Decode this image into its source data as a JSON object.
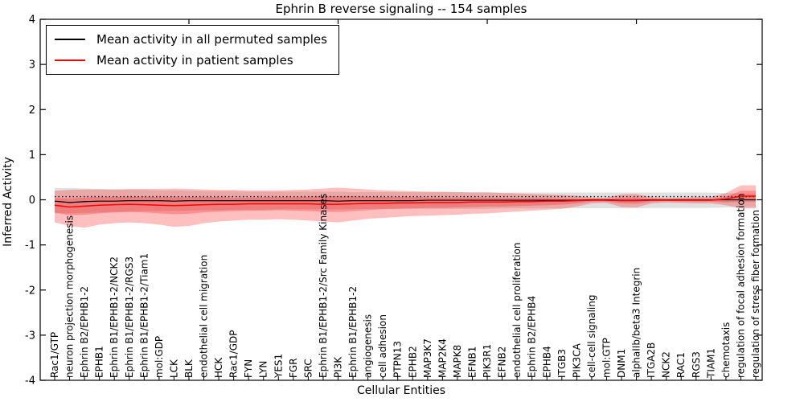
{
  "figure": {
    "title": "Ephrin B reverse signaling -- 154 samples",
    "xlabel": "Cellular Entities",
    "ylabel": "Inferred Activity",
    "legend": [
      {
        "label": "Mean activity in all permuted samples",
        "color": "#000000"
      },
      {
        "label": "Mean activity in patient samples",
        "color": "#ff0000"
      }
    ]
  },
  "chart_data": {
    "type": "line",
    "title": "Ephrin B reverse signaling -- 154 samples",
    "xlabel": "Cellular Entities",
    "ylabel": "Inferred Activity",
    "ylim": [
      -4,
      4
    ],
    "yticks": [
      4,
      3,
      2,
      1,
      0,
      -1,
      -2,
      -3,
      -4
    ],
    "grid": false,
    "legend_position": "upper left",
    "reference_dotted_y": 0.07,
    "categories": [
      "Rac1/GTP",
      "neuron projection morphogenesis",
      "Ephrin B2/EPHB1-2",
      "EPHB1",
      "Ephrin B1/EPHB1-2/NCK2",
      "Ephrin B1/EPHB1-2/RGS3",
      "Ephrin B1/EPHB1-2/Tiam1",
      "mol:GDP",
      "LCK",
      "BLK",
      "endothelial cell migration",
      "HCK",
      "Rac1/GDP",
      "FYN",
      "LYN",
      "YES1",
      "FGR",
      "SRC",
      "Ephrin B1/EPHB1-2/Src Family Kinases",
      "PI3K",
      "Ephrin B1/EPHB1-2",
      "angiogenesis",
      "cell adhesion",
      "PTPN13",
      "EPHB2",
      "MAP3K7",
      "MAP2K4",
      "MAPK8",
      "EFNB1",
      "PIK3R1",
      "EFNB2",
      "endothelial cell proliferation",
      "Ephrin B2/EPHB4",
      "EPHB4",
      "ITGB3",
      "PIK3CA",
      "cell-cell signaling",
      "mol:GTP",
      "DNM1",
      "alphaIIb/beta3 Integrin",
      "ITGA2B",
      "NCK2",
      "RAC1",
      "RGS3",
      "TIAM1",
      "chemotaxis",
      "regulation of focal adhesion formation",
      "regulation of stress fiber formation"
    ],
    "series": [
      {
        "name": "Mean activity in all permuted samples",
        "color": "#000000",
        "values": [
          -0.03,
          -0.06,
          -0.04,
          -0.03,
          -0.03,
          -0.02,
          -0.02,
          -0.02,
          -0.03,
          -0.02,
          -0.02,
          -0.02,
          -0.02,
          -0.02,
          -0.02,
          -0.02,
          -0.02,
          -0.02,
          -0.02,
          -0.03,
          -0.02,
          -0.02,
          -0.02,
          -0.02,
          -0.02,
          -0.01,
          -0.01,
          -0.01,
          -0.01,
          -0.01,
          -0.01,
          -0.01,
          -0.01,
          -0.01,
          -0.01,
          -0.01,
          0,
          0,
          -0.01,
          -0.01,
          0,
          0,
          0,
          0,
          0,
          0,
          0,
          0
        ]
      },
      {
        "name": "Mean activity in patient samples",
        "color": "#ff0000",
        "values": [
          -0.12,
          -0.16,
          -0.14,
          -0.12,
          -0.11,
          -0.1,
          -0.11,
          -0.12,
          -0.13,
          -0.12,
          -0.11,
          -0.1,
          -0.1,
          -0.09,
          -0.09,
          -0.09,
          -0.09,
          -0.09,
          -0.1,
          -0.1,
          -0.09,
          -0.08,
          -0.08,
          -0.07,
          -0.07,
          -0.06,
          -0.06,
          -0.06,
          -0.05,
          -0.05,
          -0.05,
          -0.04,
          -0.04,
          -0.03,
          -0.03,
          -0.02,
          -0.01,
          -0.01,
          -0.02,
          -0.02,
          -0.01,
          -0.01,
          -0.01,
          -0.01,
          -0.01,
          0.02,
          0.08,
          0.08
        ]
      }
    ],
    "bands": [
      {
        "name": "permuted-std-band",
        "color": "rgba(0,0,0,0.12)",
        "upper": [
          0.26,
          0.26,
          0.25,
          0.24,
          0.23,
          0.22,
          0.22,
          0.21,
          0.21,
          0.2,
          0.2,
          0.19,
          0.19,
          0.18,
          0.18,
          0.18,
          0.18,
          0.18,
          0.18,
          0.18,
          0.17,
          0.17,
          0.17,
          0.17,
          0.17,
          0.17,
          0.17,
          0.17,
          0.17,
          0.17,
          0.16,
          0.16,
          0.16,
          0.16,
          0.16,
          0.16,
          0.16,
          0.16,
          0.16,
          0.16,
          0.16,
          0.16,
          0.16,
          0.16,
          0.16,
          0.15,
          0.14,
          0.13
        ],
        "lower": [
          -0.3,
          -0.3,
          -0.29,
          -0.28,
          -0.27,
          -0.26,
          -0.25,
          -0.25,
          -0.24,
          -0.24,
          -0.23,
          -0.23,
          -0.22,
          -0.22,
          -0.22,
          -0.21,
          -0.21,
          -0.21,
          -0.21,
          -0.21,
          -0.21,
          -0.2,
          -0.2,
          -0.2,
          -0.2,
          -0.2,
          -0.2,
          -0.2,
          -0.2,
          -0.2,
          -0.19,
          -0.19,
          -0.19,
          -0.19,
          -0.19,
          -0.19,
          -0.19,
          -0.19,
          -0.19,
          -0.19,
          -0.18,
          -0.18,
          -0.18,
          -0.18,
          -0.18,
          -0.17,
          -0.16,
          -0.16
        ]
      },
      {
        "name": "patient-std-outer-band",
        "color": "rgba(255,0,0,0.25)",
        "upper": [
          0.2,
          0.22,
          0.23,
          0.23,
          0.23,
          0.24,
          0.24,
          0.24,
          0.25,
          0.24,
          0.23,
          0.22,
          0.22,
          0.21,
          0.21,
          0.21,
          0.22,
          0.23,
          0.25,
          0.27,
          0.25,
          0.23,
          0.21,
          0.2,
          0.19,
          0.18,
          0.18,
          0.17,
          0.16,
          0.16,
          0.15,
          0.14,
          0.13,
          0.12,
          0.11,
          0.09,
          0.05,
          0.05,
          0.12,
          0.13,
          0.06,
          0.04,
          0.05,
          0.06,
          0.06,
          0.15,
          0.32,
          0.32
        ],
        "lower": [
          -0.5,
          -0.58,
          -0.62,
          -0.55,
          -0.52,
          -0.5,
          -0.52,
          -0.55,
          -0.6,
          -0.58,
          -0.52,
          -0.48,
          -0.46,
          -0.44,
          -0.44,
          -0.43,
          -0.44,
          -0.46,
          -0.48,
          -0.5,
          -0.46,
          -0.42,
          -0.4,
          -0.38,
          -0.36,
          -0.35,
          -0.34,
          -0.33,
          -0.31,
          -0.3,
          -0.28,
          -0.26,
          -0.24,
          -0.22,
          -0.2,
          -0.15,
          -0.08,
          -0.07,
          -0.16,
          -0.17,
          -0.08,
          -0.06,
          -0.07,
          -0.08,
          -0.08,
          -0.12,
          -0.19,
          -0.19
        ]
      },
      {
        "name": "patient-std-inner-band",
        "color": "rgba(255,0,0,0.25)",
        "upper": [
          0.04,
          0.03,
          0.05,
          0.06,
          0.06,
          0.07,
          0.07,
          0.06,
          0.06,
          0.06,
          0.06,
          0.06,
          0.05,
          0.05,
          0.06,
          0.06,
          0.06,
          0.07,
          0.08,
          0.08,
          0.08,
          0.07,
          0.06,
          0.06,
          0.06,
          0.05,
          0.05,
          0.05,
          0.05,
          0.05,
          0.04,
          0.04,
          0.04,
          0.04,
          0.03,
          0.03,
          0.02,
          0.02,
          0.05,
          0.05,
          0.02,
          0.01,
          0.02,
          0.02,
          0.02,
          0.07,
          0.2,
          0.2
        ],
        "lower": [
          -0.28,
          -0.34,
          -0.33,
          -0.3,
          -0.28,
          -0.27,
          -0.28,
          -0.3,
          -0.32,
          -0.31,
          -0.28,
          -0.26,
          -0.25,
          -0.24,
          -0.24,
          -0.23,
          -0.24,
          -0.25,
          -0.26,
          -0.27,
          -0.25,
          -0.23,
          -0.21,
          -0.2,
          -0.19,
          -0.18,
          -0.18,
          -0.17,
          -0.16,
          -0.15,
          -0.15,
          -0.14,
          -0.13,
          -0.12,
          -0.11,
          -0.08,
          -0.04,
          -0.04,
          -0.08,
          -0.09,
          -0.04,
          -0.03,
          -0.04,
          -0.04,
          -0.04,
          -0.06,
          -0.05,
          -0.05
        ]
      }
    ]
  }
}
